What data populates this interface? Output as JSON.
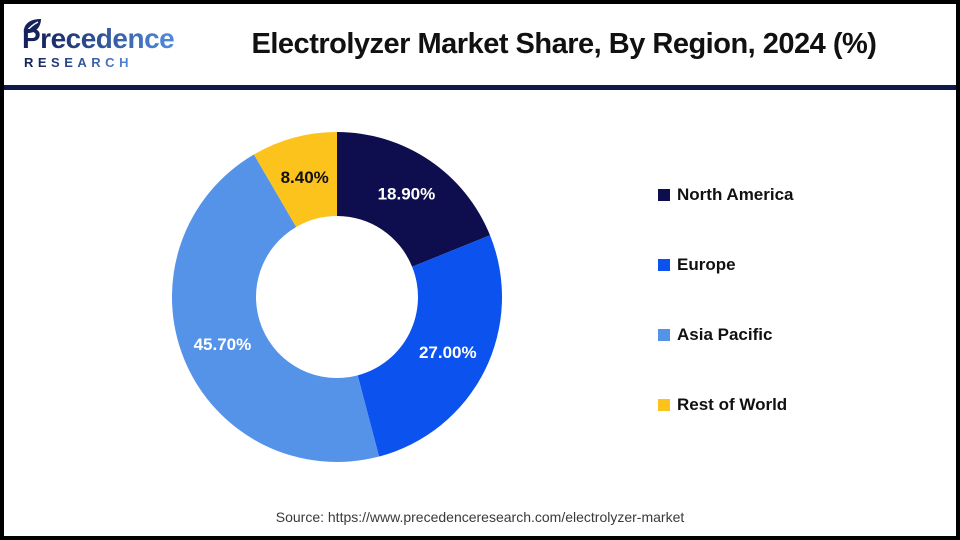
{
  "header": {
    "logo": {
      "brand": "Precedence",
      "sub": "RESEARCH",
      "brand_color_start": "#15235c",
      "brand_color_end": "#4e86d6"
    },
    "title": "Electrolyzer Market Share, By Region, 2024 (%)",
    "divider_color": "#101a4a"
  },
  "chart_data": {
    "type": "pie",
    "subtype": "donut",
    "title": "Electrolyzer Market Share, By Region, 2024 (%)",
    "start_angle_deg": 0,
    "direction": "clockwise",
    "inner_radius_ratio": 0.49,
    "legend_position": "right",
    "categories": [
      "North America",
      "Europe",
      "Asia Pacific",
      "Rest of World"
    ],
    "series": [
      {
        "name": "North America",
        "value": 18.9,
        "label": "18.90%",
        "color": "#0e0e4f",
        "label_color": "#ffffff"
      },
      {
        "name": "Europe",
        "value": 27.0,
        "label": "27.00%",
        "color": "#0b52ee",
        "label_color": "#ffffff"
      },
      {
        "name": "Asia Pacific",
        "value": 45.7,
        "label": "45.70%",
        "color": "#5593e9",
        "label_color": "#ffffff"
      },
      {
        "name": "Rest of World",
        "value": 8.4,
        "label": "8.40%",
        "color": "#fcc31d",
        "label_color": "#111111"
      }
    ]
  },
  "footer": {
    "source": "Source: https://www.precedenceresearch.com/electrolyzer-market"
  }
}
